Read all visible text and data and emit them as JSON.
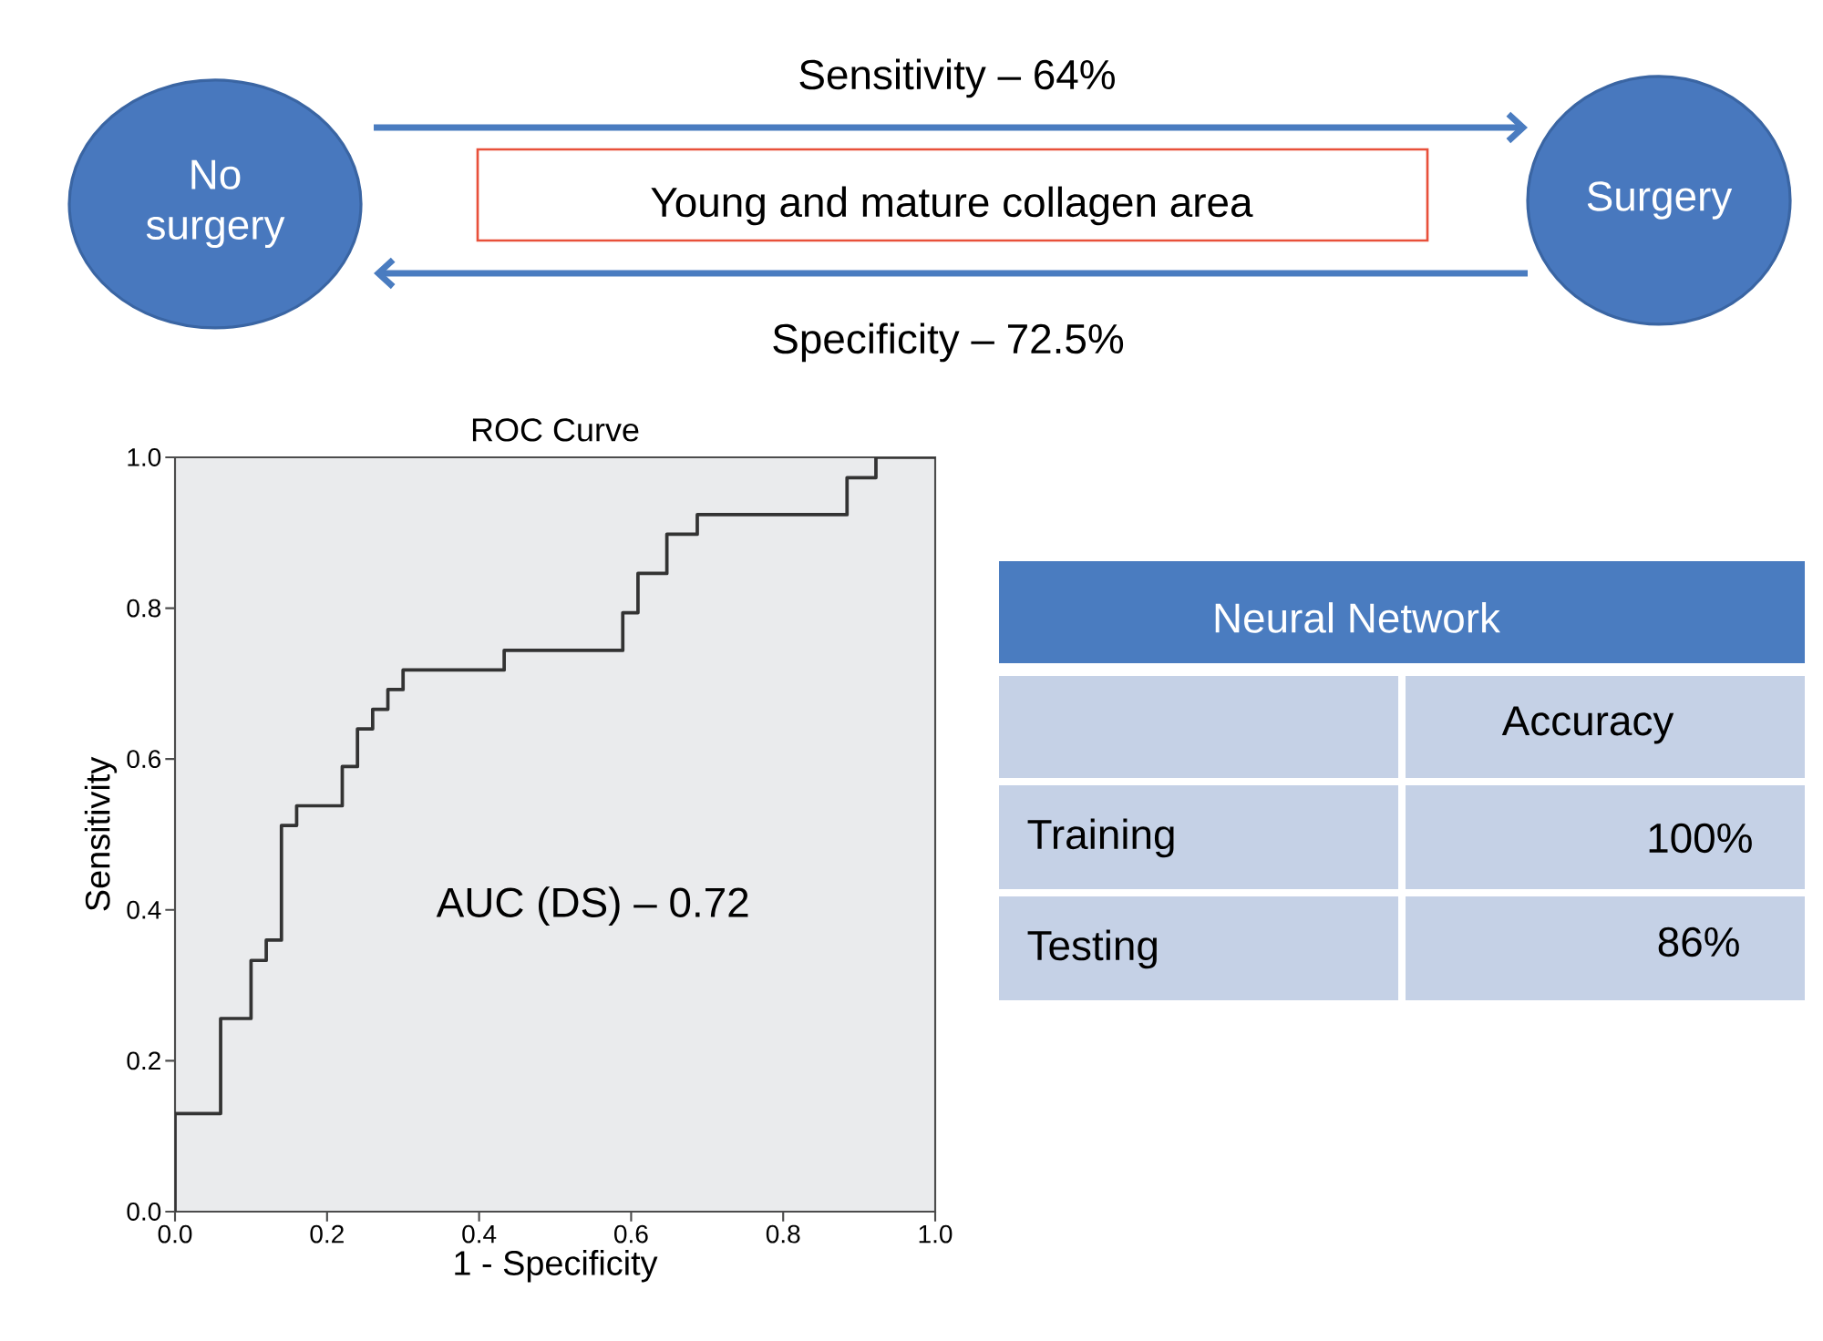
{
  "chart_data": [
    {
      "type": "other",
      "annotations": [
        "No surgery",
        "Surgery",
        "Young and mature collagen area",
        "Sensitivity – 64%",
        "Specificity – 72.5%"
      ]
    },
    {
      "type": "step",
      "title": "ROC Curve",
      "xlabel": "1 - Specificity",
      "ylabel": "Sensitivity",
      "color": "#333333",
      "x": [
        0,
        0,
        0.06,
        0.1,
        0.12,
        0.14,
        0.16,
        0.22,
        0.24,
        0.26,
        0.28,
        0.3,
        0.433,
        0.589,
        0.609,
        0.647,
        0.687,
        0.884,
        0.922,
        1.0
      ],
      "values": [
        0,
        0.13,
        0.256,
        0.333,
        0.36,
        0.512,
        0.538,
        0.59,
        0.64,
        0.666,
        0.692,
        0.718,
        0.744,
        0.794,
        0.846,
        0.898,
        0.924,
        0.973,
        1.0,
        1.0
      ],
      "xlim": [
        0,
        1
      ],
      "ylim": [
        0,
        1
      ],
      "xticks": [
        {
          "value": 0,
          "label": "0.0"
        },
        {
          "value": 0.2,
          "label": "0.2"
        },
        {
          "value": 0.4,
          "label": "0.4"
        },
        {
          "value": 0.6,
          "label": "0.6"
        },
        {
          "value": 0.8,
          "label": "0.8"
        },
        {
          "value": 1,
          "label": "1.0"
        }
      ],
      "yticks": [
        {
          "value": 0,
          "label": "0.0"
        },
        {
          "value": 0.2,
          "label": "0.2"
        },
        {
          "value": 0.4,
          "label": "0.4"
        },
        {
          "value": 0.6,
          "label": "0.6"
        },
        {
          "value": 0.8,
          "label": "0.8"
        },
        {
          "value": 1,
          "label": "1.0"
        }
      ],
      "annotations": [
        "AUC (DS) – 0.72"
      ]
    },
    {
      "type": "other",
      "title": "Neural Network",
      "annotations": [
        "Accuracy",
        "Training",
        "100%",
        "Testing",
        "86%"
      ]
    }
  ]
}
